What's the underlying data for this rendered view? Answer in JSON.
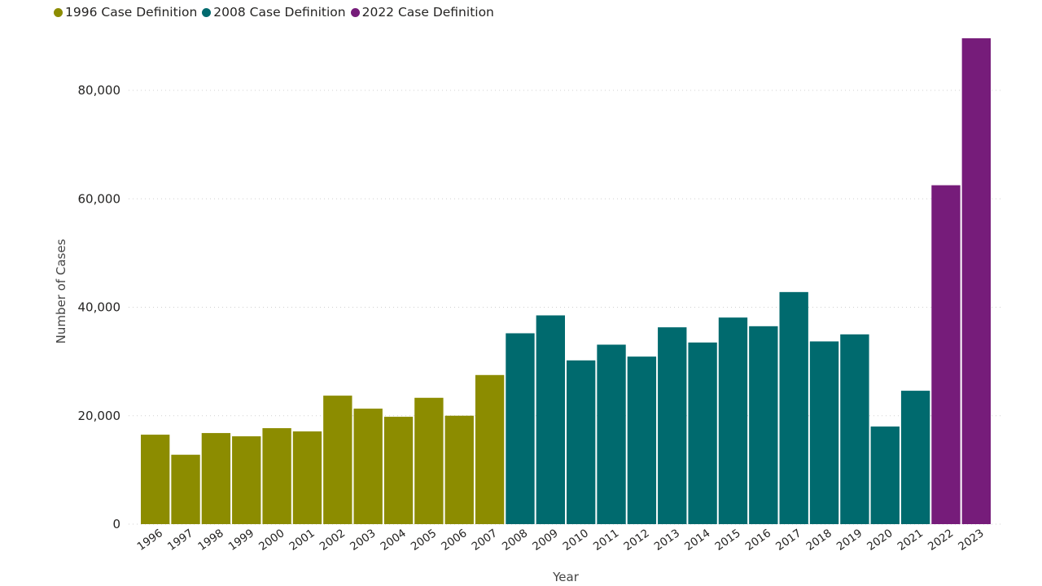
{
  "chart_data": {
    "type": "bar",
    "title": "",
    "xlabel": "Year",
    "ylabel": "Number of Cases",
    "ylim": [
      0,
      90000
    ],
    "yticks": [
      0,
      20000,
      40000,
      60000,
      80000
    ],
    "ytick_labels": [
      "0",
      "20,000",
      "40,000",
      "60,000",
      "80,000"
    ],
    "grid": true,
    "legend_position": "top-left",
    "legend": [
      {
        "name": "1996 Case Definition",
        "color": "#8C8C00"
      },
      {
        "name": "2008 Case Definition",
        "color": "#006A6E"
      },
      {
        "name": "2022 Case Definition",
        "color": "#761C7A"
      }
    ],
    "categories": [
      "1996",
      "1997",
      "1998",
      "1999",
      "2000",
      "2001",
      "2002",
      "2003",
      "2004",
      "2005",
      "2006",
      "2007",
      "2008",
      "2009",
      "2010",
      "2011",
      "2012",
      "2013",
      "2014",
      "2015",
      "2016",
      "2017",
      "2018",
      "2019",
      "2020",
      "2021",
      "2022",
      "2023"
    ],
    "values": [
      16500,
      12800,
      16800,
      16200,
      17700,
      17100,
      23700,
      21300,
      19800,
      23300,
      20000,
      27500,
      35200,
      38500,
      30200,
      33100,
      30900,
      36300,
      33500,
      38100,
      36500,
      42800,
      33700,
      35000,
      18000,
      24600,
      62500,
      89600
    ],
    "series_index": [
      0,
      0,
      0,
      0,
      0,
      0,
      0,
      0,
      0,
      0,
      0,
      0,
      1,
      1,
      1,
      1,
      1,
      1,
      1,
      1,
      1,
      1,
      1,
      1,
      1,
      1,
      2,
      2
    ]
  }
}
